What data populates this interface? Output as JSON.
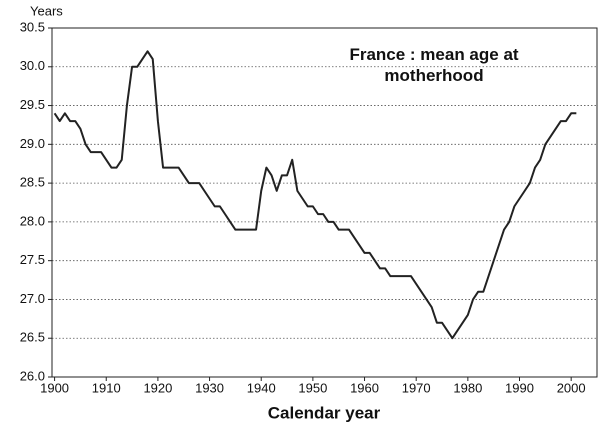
{
  "chart_data": {
    "type": "line",
    "title": "France : mean age at motherhood",
    "y_label": "Years",
    "x_label": "Calendar year",
    "color": "#222222",
    "x": [
      1900,
      1901,
      1902,
      1903,
      1904,
      1905,
      1906,
      1907,
      1908,
      1909,
      1910,
      1911,
      1912,
      1913,
      1914,
      1915,
      1916,
      1917,
      1918,
      1919,
      1920,
      1921,
      1922,
      1923,
      1924,
      1925,
      1926,
      1927,
      1928,
      1929,
      1930,
      1931,
      1932,
      1933,
      1934,
      1935,
      1936,
      1937,
      1938,
      1939,
      1940,
      1941,
      1942,
      1943,
      1944,
      1945,
      1946,
      1947,
      1948,
      1949,
      1950,
      1951,
      1952,
      1953,
      1954,
      1955,
      1956,
      1957,
      1958,
      1959,
      1960,
      1961,
      1962,
      1963,
      1964,
      1965,
      1966,
      1967,
      1968,
      1969,
      1970,
      1971,
      1972,
      1973,
      1974,
      1975,
      1976,
      1977,
      1978,
      1979,
      1980,
      1981,
      1982,
      1983,
      1984,
      1985,
      1986,
      1987,
      1988,
      1989,
      1990,
      1991,
      1992,
      1993,
      1994,
      1995,
      1996,
      1997,
      1998,
      1999,
      2000,
      2001
    ],
    "values": [
      29.4,
      29.3,
      29.4,
      29.3,
      29.3,
      29.2,
      29.0,
      28.9,
      28.9,
      28.9,
      28.8,
      28.7,
      28.7,
      28.8,
      29.5,
      30.0,
      30.0,
      30.1,
      30.2,
      30.1,
      29.3,
      28.7,
      28.7,
      28.7,
      28.7,
      28.6,
      28.5,
      28.5,
      28.5,
      28.4,
      28.3,
      28.2,
      28.2,
      28.1,
      28.0,
      27.9,
      27.9,
      27.9,
      27.9,
      27.9,
      28.4,
      28.7,
      28.6,
      28.4,
      28.6,
      28.6,
      28.8,
      28.4,
      28.3,
      28.2,
      28.2,
      28.1,
      28.1,
      28.0,
      28.0,
      27.9,
      27.9,
      27.9,
      27.8,
      27.7,
      27.6,
      27.6,
      27.5,
      27.4,
      27.4,
      27.3,
      27.3,
      27.3,
      27.3,
      27.3,
      27.2,
      27.1,
      27.0,
      26.9,
      26.7,
      26.7,
      26.6,
      26.5,
      26.6,
      26.7,
      26.8,
      27.0,
      27.1,
      27.1,
      27.3,
      27.5,
      27.7,
      27.9,
      28.0,
      28.2,
      28.3,
      28.4,
      28.5,
      28.7,
      28.8,
      29.0,
      29.1,
      29.2,
      29.3,
      29.3,
      29.4,
      29.4
    ],
    "xlim": [
      1899.5,
      2005
    ],
    "xticks": [
      1900,
      1910,
      1920,
      1930,
      1940,
      1950,
      1960,
      1970,
      1980,
      1990,
      2000
    ],
    "ylim": [
      26,
      30.5
    ],
    "yticks": [
      {
        "value": 26,
        "label": "26.0"
      },
      26.5,
      {
        "value": 27,
        "label": "27.0"
      },
      27.5,
      {
        "value": 28,
        "label": "28.0"
      },
      28.5,
      {
        "value": 29,
        "label": "29.0"
      },
      29.5,
      {
        "value": 30,
        "label": "30.0"
      },
      30.5
    ],
    "grid": true
  }
}
